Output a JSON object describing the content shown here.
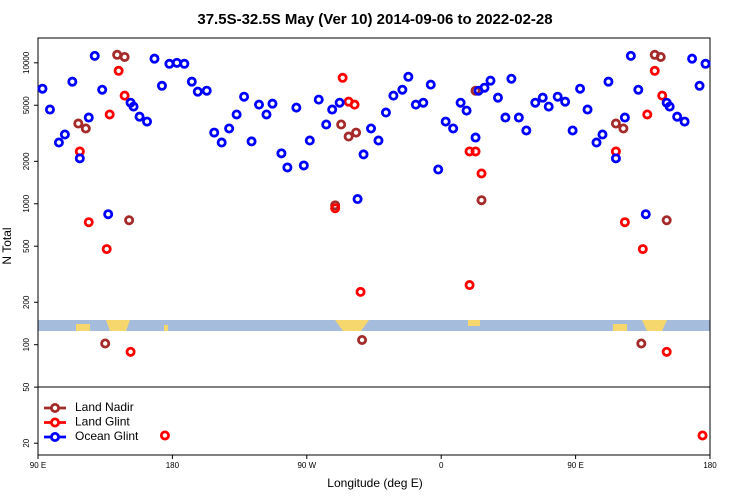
{
  "chart_data": {
    "type": "scatter",
    "title": "37.5S-32.5S May (Ver 10)   2014-09-06 to 2022-02-28",
    "x_label": "Longitude (deg E)",
    "y_label": "N Total",
    "log_y": true,
    "legend": "bottom-left",
    "xlim": [
      90,
      540
    ],
    "ylim": [
      16.5,
      15000
    ],
    "xticks": [
      {
        "value": 90,
        "label": "90 E"
      },
      {
        "value": 180,
        "label": "180"
      },
      {
        "value": 270,
        "label": "90 W"
      },
      {
        "value": 360,
        "label": "0"
      },
      {
        "value": 450,
        "label": "90 E"
      },
      {
        "value": 540,
        "label": "180"
      }
    ],
    "yticks": [
      20,
      50,
      100,
      200,
      500,
      1000,
      2000,
      5000,
      10000
    ],
    "series": [
      {
        "name": "Land Nadir",
        "color": "#a52a2a",
        "x": [
          117,
          122,
          135,
          143,
          148,
          151,
          289,
          293,
          298,
          303,
          307,
          383,
          387,
          477,
          482,
          494,
          503,
          507,
          511
        ],
        "values": [
          3710,
          3420,
          102,
          11400,
          11000,
          764,
          975,
          3650,
          3000,
          3200,
          108,
          6340,
          1060,
          3710,
          3420,
          102,
          11400,
          11000,
          764
        ]
      },
      {
        "name": "Land Glint",
        "color": "#ff0000",
        "x": [
          118,
          124,
          136,
          138,
          144,
          148,
          152,
          175,
          289,
          294,
          298,
          302,
          306,
          379,
          379,
          383,
          387,
          477,
          483,
          495,
          498,
          503,
          508,
          511,
          535
        ],
        "values": [
          2350,
          740,
          477,
          4300,
          8780,
          5850,
          89,
          22.7,
          929,
          7830,
          5300,
          5050,
          237,
          265,
          2350,
          2350,
          1640,
          2350,
          740,
          477,
          4300,
          8780,
          5850,
          89,
          22.7
        ]
      },
      {
        "name": "Ocean Glint",
        "color": "#0000ff",
        "x": [
          93,
          98,
          104,
          108,
          113,
          118,
          124,
          128,
          133,
          137,
          152,
          154,
          158,
          163,
          168,
          173,
          178,
          183,
          188,
          193,
          197,
          203,
          208,
          213,
          218,
          223,
          228,
          233,
          238,
          243,
          247,
          253,
          257,
          263,
          268,
          272,
          278,
          283,
          287,
          292,
          304,
          308,
          313,
          318,
          323,
          328,
          334,
          338,
          343,
          348,
          353,
          358,
          363,
          368,
          373,
          377,
          383,
          385,
          389,
          393,
          398,
          403,
          407,
          412,
          417,
          423,
          428,
          432,
          438,
          443,
          448,
          453,
          458,
          464,
          468,
          472,
          477,
          483,
          487,
          492,
          497,
          511,
          513,
          518,
          523,
          528,
          533,
          537
        ],
        "values": [
          6550,
          4660,
          2720,
          3100,
          7350,
          2100,
          4090,
          11200,
          6440,
          843,
          5210,
          4890,
          4150,
          3830,
          10700,
          6870,
          9840,
          10000,
          9840,
          7350,
          6240,
          6340,
          3200,
          2720,
          3420,
          4300,
          5750,
          2770,
          5050,
          4300,
          5130,
          2280,
          1810,
          4810,
          1870,
          2810,
          5480,
          3650,
          4660,
          5210,
          1080,
          2240,
          3420,
          2810,
          4440,
          5850,
          6440,
          7960,
          5050,
          5210,
          7000,
          1750,
          3830,
          3420,
          5210,
          4580,
          2950,
          6340,
          6660,
          7470,
          5660,
          4090,
          7710,
          4090,
          3310,
          5210,
          5660,
          4890,
          5750,
          5300,
          3310,
          6550,
          4660,
          2720,
          3100,
          7350,
          2100,
          4090,
          11200,
          6440,
          843,
          5210,
          4890,
          4150,
          3830,
          10700,
          6870,
          9840
        ]
      }
    ]
  }
}
